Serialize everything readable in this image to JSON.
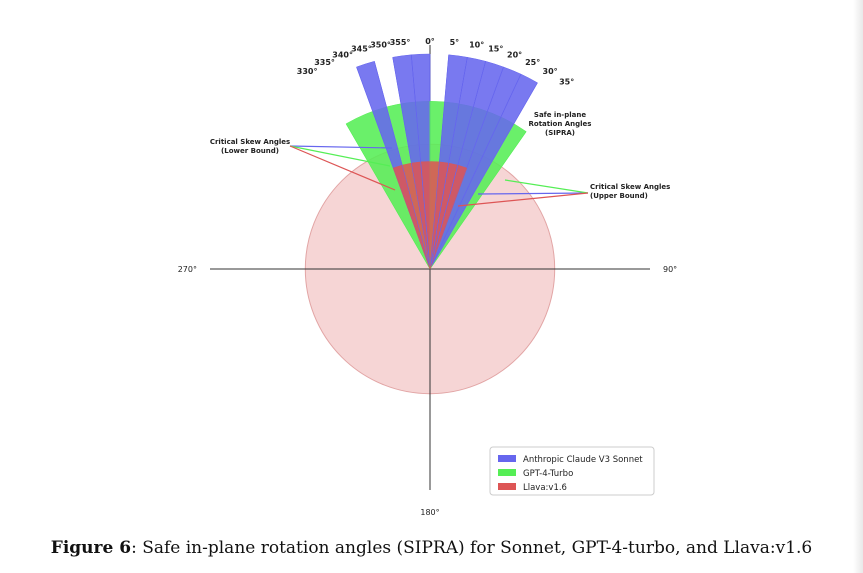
{
  "chart_data": {
    "type": "polar-wedge",
    "caption_label": "Figure 6",
    "caption_text": ": Safe in-plane rotation angles (SIPRA) for Sonnet, GPT-4-turbo, and Llava:v1.6",
    "compass_labels": {
      "top": "0°",
      "right": "90°",
      "bottom": "180°",
      "left": "270°"
    },
    "angle_ticks": [
      "330°",
      "335°",
      "340°",
      "345°",
      "350°",
      "355°",
      "0°",
      "5°",
      "10°",
      "15°",
      "20°",
      "25°",
      "30°",
      "35°"
    ],
    "annotations": {
      "sipra": "Safe in-plane\nRotation Angles\n(SIPRA)",
      "lower": "Critical Skew Angles\n(Lower Bound)",
      "upper": "Critical Skew Angles\n(Upper Bound)"
    },
    "series": [
      {
        "name": "Anthropic Claude V3 Sonnet",
        "color": "#6666ee",
        "wedges": [
          {
            "from": 340,
            "to": 345
          },
          {
            "from": 350,
            "to": 355
          },
          {
            "from": 355,
            "to": 360
          },
          {
            "from": 5,
            "to": 10
          },
          {
            "from": 10,
            "to": 15
          },
          {
            "from": 15,
            "to": 20
          },
          {
            "from": 20,
            "to": 25
          },
          {
            "from": 25,
            "to": 30
          }
        ],
        "radius": 1.0
      },
      {
        "name": "GPT-4-Turbo",
        "color": "#55ee55",
        "wedges": [
          {
            "from": 330,
            "to": 360
          },
          {
            "from": 0,
            "to": 35
          }
        ],
        "radius": 0.78
      },
      {
        "name": "Llava:v1.6",
        "color": "#dd5555",
        "wedges": [
          {
            "from": 340,
            "to": 360
          },
          {
            "from": 0,
            "to": 20
          }
        ],
        "radius": 0.5
      }
    ],
    "background_circle": {
      "color": "#f6d5d5",
      "radius": 0.58
    },
    "legend": {
      "position": "bottom-right",
      "entries": [
        "Anthropic Claude V3 Sonnet",
        "GPT-4-Turbo",
        "Llava:v1.6"
      ]
    }
  }
}
